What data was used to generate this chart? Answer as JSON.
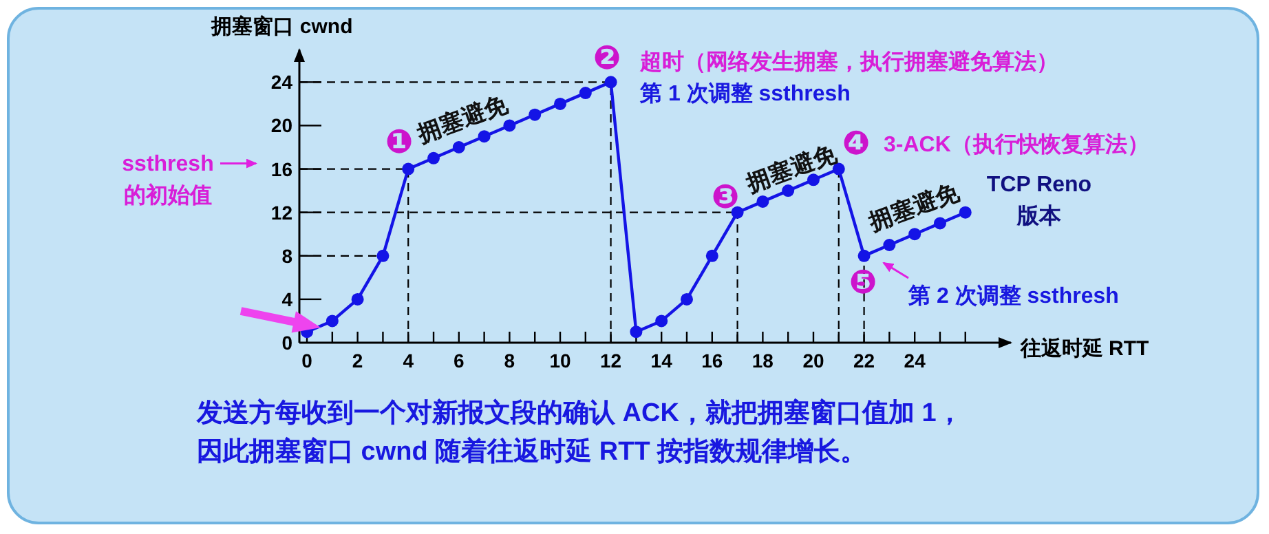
{
  "chart_data": {
    "type": "line",
    "xlabel": "往返时延 RTT",
    "ylabel": "拥塞窗口 cwnd",
    "x": [
      0,
      1,
      2,
      3,
      4,
      5,
      6,
      7,
      8,
      9,
      10,
      11,
      12,
      13,
      14,
      15,
      16,
      17,
      18,
      19,
      20,
      21,
      22,
      23,
      24,
      25,
      26
    ],
    "series": [
      {
        "color": "#1414e6",
        "values": [
          1,
          2,
          4,
          8,
          16,
          17,
          18,
          19,
          20,
          21,
          22,
          23,
          24,
          1,
          2,
          4,
          8,
          12,
          13,
          14,
          15,
          16,
          8,
          9,
          10,
          11,
          12
        ]
      }
    ],
    "xlim": [
      -0.3,
      27.8
    ],
    "ylim": [
      0,
      27
    ],
    "xticks": [
      0,
      {
        "value": 1,
        "label": null
      },
      2,
      {
        "value": 3,
        "label": null
      },
      4,
      {
        "value": 5,
        "label": null
      },
      6,
      {
        "value": 7,
        "label": null
      },
      8,
      {
        "value": 9,
        "label": null
      },
      10,
      {
        "value": 11,
        "label": null
      },
      12,
      {
        "value": 13,
        "label": null
      },
      14,
      {
        "value": 15,
        "label": null
      },
      16,
      {
        "value": 17,
        "label": null
      },
      18,
      {
        "value": 19,
        "label": null
      },
      20,
      {
        "value": 21,
        "label": null
      },
      22,
      {
        "value": 23,
        "label": null
      },
      24,
      {
        "value": 25,
        "label": null
      },
      {
        "value": 26,
        "label": null
      }
    ],
    "yticks": [
      0,
      4,
      8,
      12,
      16,
      20,
      24
    ],
    "marker": "circle",
    "line_style": "solid",
    "ref_lines": [
      {
        "axis": "y",
        "value": 24,
        "line_style": "dashed"
      },
      {
        "axis": "y",
        "value": 16,
        "line_style": "dashed"
      },
      {
        "axis": "y",
        "value": 12,
        "line_style": "dashed"
      },
      {
        "axis": "y",
        "value": 8,
        "line_style": "dashed"
      },
      {
        "axis": "x",
        "value": 4,
        "line_style": "dashed"
      },
      {
        "axis": "x",
        "value": 12,
        "line_style": "dashed"
      },
      {
        "axis": "x",
        "value": 17,
        "line_style": "dashed"
      },
      {
        "axis": "x",
        "value": 21,
        "line_style": "dashed"
      },
      {
        "axis": "x",
        "value": 22,
        "line_style": "dashed"
      }
    ],
    "annotations": [
      "❶",
      "拥塞避免",
      "❷",
      "❸",
      "拥塞避免",
      "❹",
      "拥塞避免",
      "❺",
      "超时（网络发生拥塞，执行拥塞避免算法）",
      "第 1 次调整 ssthresh",
      "3-ACK（执行快恢复算法）",
      "TCP Reno\n版本",
      "第 2 次调整 ssthresh",
      "ssthresh\n的初始值",
      "发送方每收到一个对新报文段的确认 ACK，就把拥塞窗口值加 1，",
      "因此拥塞窗口 cwnd 随着往返时延 RTT 按指数规律增长。"
    ]
  }
}
